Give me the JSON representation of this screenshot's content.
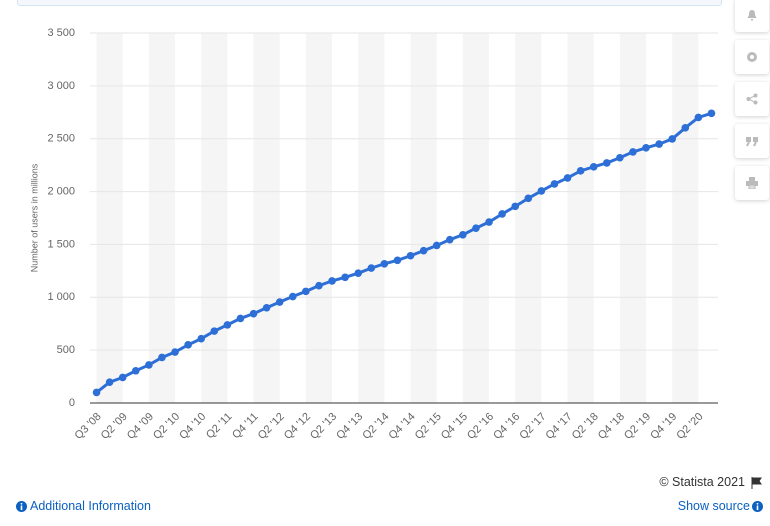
{
  "chart_data": {
    "type": "line",
    "y_label": "Number of users in millions",
    "categories": [
      "Q3 '08",
      null,
      "Q2 '09",
      null,
      "Q4 '09",
      null,
      "Q2 '10",
      null,
      "Q4 '10",
      null,
      "Q2 '11",
      null,
      "Q4 '11",
      null,
      "Q2 '12",
      null,
      "Q4 '12",
      null,
      "Q2 '13",
      null,
      "Q4 '13",
      null,
      "Q2 '14",
      null,
      "Q4 '14",
      null,
      "Q2 '15",
      null,
      "Q4 '15",
      null,
      "Q2 '16",
      null,
      "Q4 '16",
      null,
      "Q2 '17",
      null,
      "Q4 '17",
      null,
      "Q2 '18",
      null,
      "Q4 '18",
      null,
      "Q2 '19",
      null,
      "Q4 '19",
      null,
      "Q2 '20",
      null
    ],
    "values": [
      100,
      197,
      242,
      305,
      360,
      431,
      482,
      550,
      608,
      680,
      739,
      800,
      845,
      901,
      955,
      1007,
      1056,
      1110,
      1155,
      1189,
      1228,
      1276,
      1317,
      1350,
      1393,
      1441,
      1490,
      1545,
      1591,
      1654,
      1712,
      1788,
      1860,
      1936,
      2006,
      2072,
      2129,
      2196,
      2234,
      2271,
      2320,
      2375,
      2414,
      2449,
      2498,
      2603,
      2701,
      2740
    ],
    "color": "#2d6fd6",
    "ylim": [
      0,
      3500
    ],
    "yticks": [
      0,
      500,
      {
        "value": 1000,
        "label": "1 000"
      },
      {
        "value": 1500,
        "label": "1 500"
      },
      {
        "value": 2000,
        "label": "2 000"
      },
      {
        "value": 2500,
        "label": "2 500"
      },
      {
        "value": 3000,
        "label": "3 000"
      },
      {
        "value": 3500,
        "label": "3 500"
      }
    ],
    "grid": true
  },
  "footer": {
    "copyright": "© Statista 2021",
    "additional": "Additional Information",
    "source": "Show source"
  }
}
